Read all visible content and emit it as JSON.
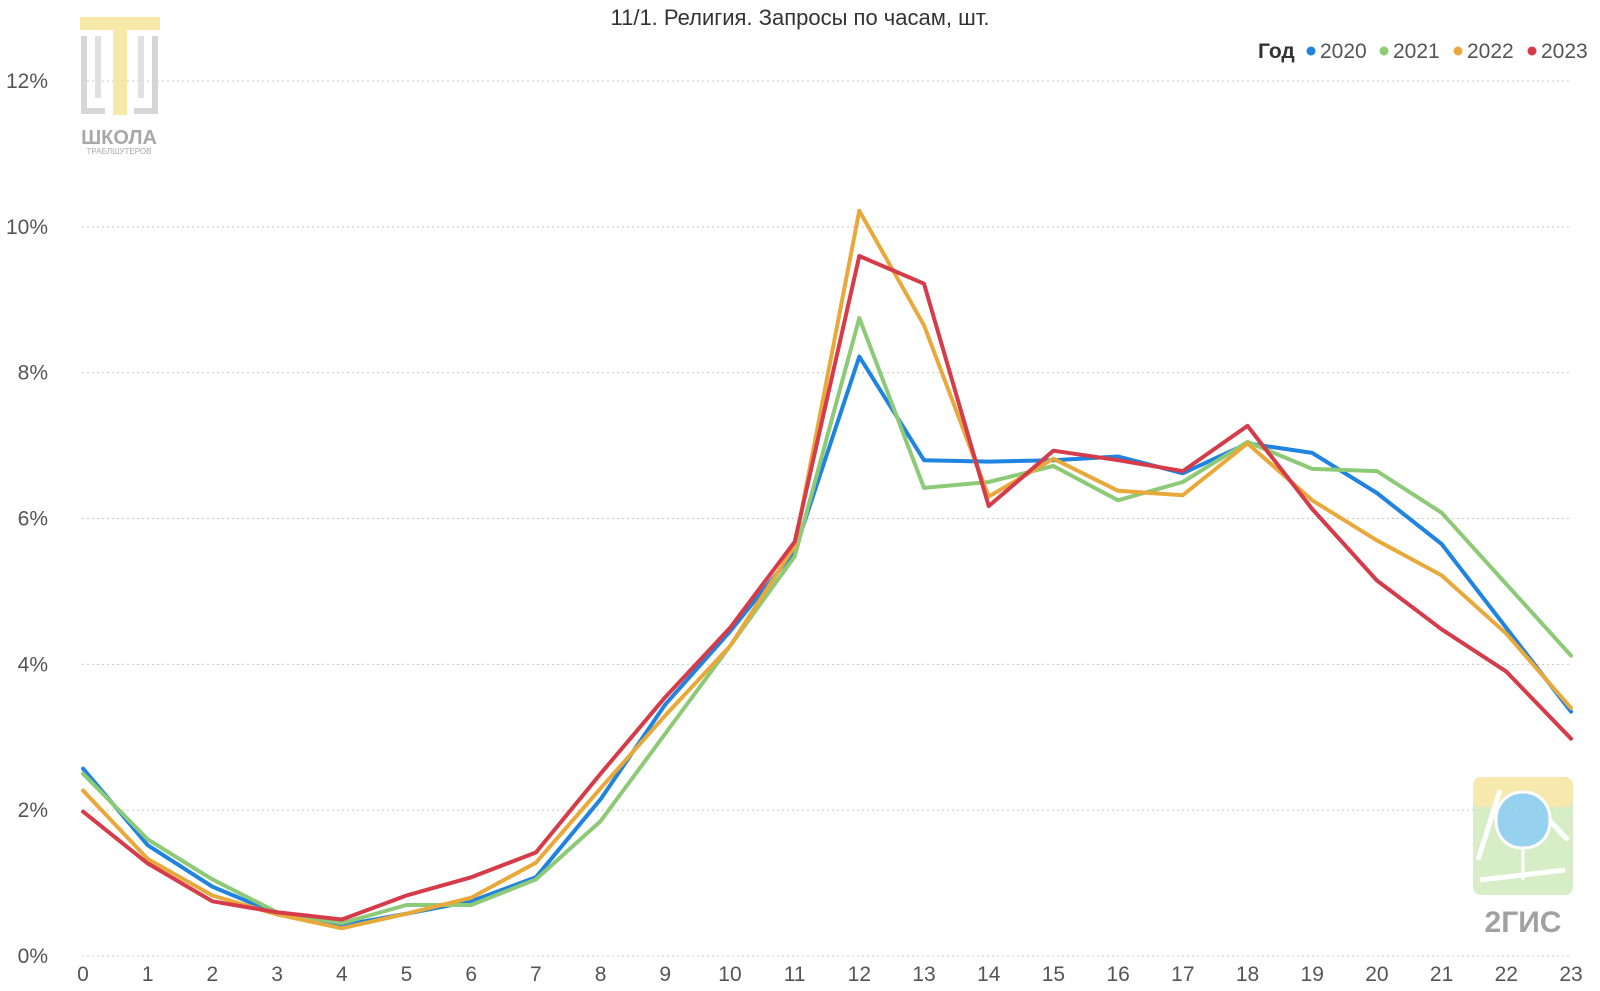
{
  "chart_data": {
    "type": "line",
    "title": "11/1. Религия. Запросы по часам, шт.",
    "legend_title": "Год",
    "legend_position": "top-right",
    "grid": true,
    "x": [
      0,
      1,
      2,
      3,
      4,
      5,
      6,
      7,
      8,
      9,
      10,
      11,
      12,
      13,
      14,
      15,
      16,
      17,
      18,
      19,
      20,
      21,
      22,
      23
    ],
    "x_tick_labels": [
      "0",
      "1",
      "2",
      "3",
      "4",
      "5",
      "6",
      "7",
      "8",
      "9",
      "10",
      "11",
      "12",
      "13",
      "14",
      "15",
      "16",
      "17",
      "18",
      "19",
      "20",
      "21",
      "22",
      "23"
    ],
    "ylim": [
      0,
      12
    ],
    "y_ticks": [
      0,
      2,
      4,
      6,
      8,
      10,
      12
    ],
    "y_tick_labels": [
      "0%",
      "2%",
      "4%",
      "6%",
      "8%",
      "10%",
      "12%"
    ],
    "series": [
      {
        "name": "2020",
        "color": "#1f83e0",
        "values": [
          2.57,
          1.52,
          0.95,
          0.58,
          0.42,
          0.58,
          0.75,
          1.08,
          2.15,
          3.45,
          4.45,
          5.55,
          8.22,
          6.8,
          6.78,
          6.8,
          6.85,
          6.62,
          7.03,
          6.9,
          6.35,
          5.65,
          4.5,
          3.35
        ]
      },
      {
        "name": "2021",
        "color": "#8dca77",
        "values": [
          2.5,
          1.6,
          1.05,
          0.6,
          0.45,
          0.7,
          0.7,
          1.05,
          1.85,
          3.05,
          4.25,
          5.48,
          8.75,
          6.42,
          6.5,
          6.72,
          6.25,
          6.5,
          7.05,
          6.68,
          6.65,
          6.08,
          5.1,
          4.12
        ]
      },
      {
        "name": "2022",
        "color": "#e9a93a",
        "values": [
          2.27,
          1.33,
          0.83,
          0.57,
          0.38,
          0.58,
          0.8,
          1.28,
          2.3,
          3.3,
          4.25,
          5.62,
          10.22,
          8.65,
          6.3,
          6.82,
          6.38,
          6.32,
          7.03,
          6.25,
          5.7,
          5.22,
          4.42,
          3.4
        ]
      },
      {
        "name": "2023",
        "color": "#d63b4a",
        "values": [
          1.98,
          1.27,
          0.75,
          0.6,
          0.5,
          0.83,
          1.08,
          1.42,
          2.5,
          3.55,
          4.5,
          5.68,
          9.6,
          9.22,
          6.17,
          6.93,
          6.8,
          6.65,
          7.27,
          6.13,
          5.15,
          4.48,
          3.9,
          2.98
        ]
      }
    ]
  },
  "watermarks": {
    "school_logo_text": "ШКОЛА",
    "school_logo_subtext": "ТРАБЛШУТЕРОВ",
    "gis_logo_text": "2ГИС"
  }
}
